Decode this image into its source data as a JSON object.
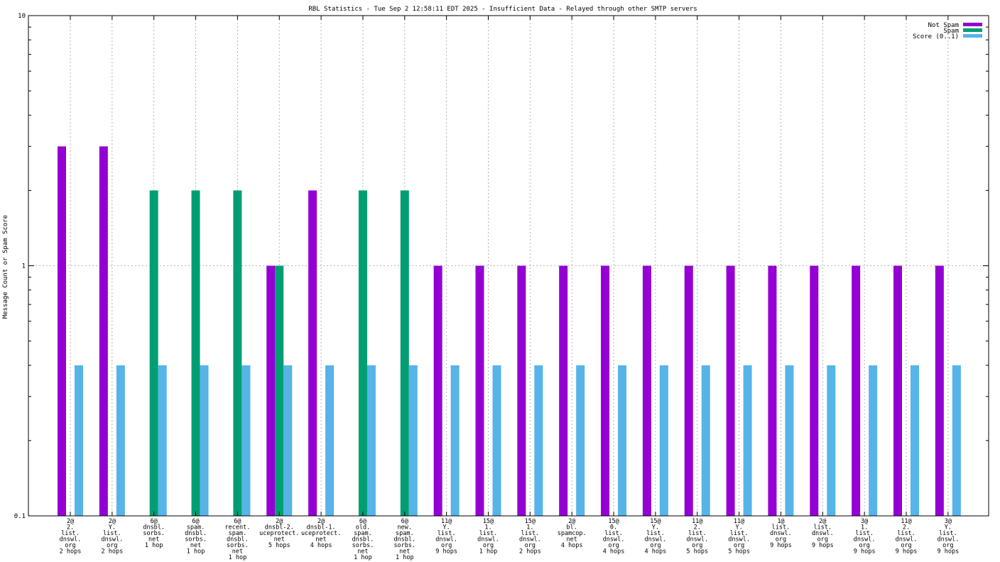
{
  "chart_data": {
    "type": "bar",
    "title": "RBL Statistics - Tue Sep  2 12:58:11 EDT 2025 - Insufficient Data - Relayed through other SMTP servers",
    "xlabel": "",
    "ylabel": "Message Count or Spam Score",
    "yscale": "log",
    "ylim": [
      0.1,
      10
    ],
    "yticks": [
      {
        "value": 10,
        "label": "10"
      },
      {
        "value": 1,
        "label": "1"
      },
      {
        "value": 0.1,
        "label": "0.1"
      }
    ],
    "grid": true,
    "legend_position": "top-right",
    "categories": [
      [
        "2@",
        "2.",
        "list.",
        "dnswl.",
        "org",
        "2 hops"
      ],
      [
        "2@",
        "Y.",
        "list.",
        "dnswl.",
        "org",
        "2 hops"
      ],
      [
        "6@",
        "dnsbl.",
        "sorbs.",
        "net",
        "1 hop"
      ],
      [
        "6@",
        "spam.",
        "dnsbl.",
        "sorbs.",
        "net",
        "1 hop"
      ],
      [
        "6@",
        "recent.",
        "spam.",
        "dnsbl.",
        "sorbs.",
        "net",
        "1 hop"
      ],
      [
        "2@",
        "dnsbl-2.",
        "uceprotect.",
        "net",
        "5 hops"
      ],
      [
        "2@",
        "dnsbl-1.",
        "uceprotect.",
        "net",
        "4 hops"
      ],
      [
        "6@",
        "old.",
        "spam.",
        "dnsbl.",
        "sorbs.",
        "net",
        "1 hop"
      ],
      [
        "6@",
        "new.",
        "spam.",
        "dnsbl.",
        "sorbs.",
        "net",
        "1 hop"
      ],
      [
        "11@",
        "Y.",
        "list.",
        "dnswl.",
        "org",
        "9 hops"
      ],
      [
        "15@",
        "1.",
        "list.",
        "dnswl.",
        "org",
        "1 hop"
      ],
      [
        "15@",
        "1.",
        "list.",
        "dnswl.",
        "org",
        "2 hops"
      ],
      [
        "2@",
        "bl.",
        "spamcop.",
        "net",
        "4 hops"
      ],
      [
        "15@",
        "0.",
        "list.",
        "dnswl.",
        "org",
        "4 hops"
      ],
      [
        "15@",
        "Y.",
        "list.",
        "dnswl.",
        "org",
        "4 hops"
      ],
      [
        "11@",
        "2.",
        "list.",
        "dnswl.",
        "org",
        "5 hops"
      ],
      [
        "11@",
        "Y.",
        "list.",
        "dnswl.",
        "org",
        "5 hops"
      ],
      [
        "1@",
        "list.",
        "dnswl.",
        "org",
        "9 hops"
      ],
      [
        "2@",
        "list.",
        "dnswl.",
        "org",
        "9 hops"
      ],
      [
        "3@",
        "1.",
        "list.",
        "dnswl.",
        "org",
        "9 hops"
      ],
      [
        "11@",
        "2.",
        "list.",
        "dnswl.",
        "org",
        "9 hops"
      ],
      [
        "3@",
        "Y.",
        "list.",
        "dnswl.",
        "org",
        "9 hops"
      ]
    ],
    "series": [
      {
        "name": "Not Spam",
        "color": "#9400d3",
        "values": [
          3,
          3,
          null,
          null,
          null,
          1,
          2,
          null,
          null,
          1,
          1,
          1,
          1,
          1,
          1,
          1,
          1,
          1,
          1,
          1,
          1,
          1
        ]
      },
      {
        "name": "Spam",
        "color": "#009e73",
        "values": [
          null,
          null,
          2,
          2,
          2,
          1,
          null,
          2,
          2,
          null,
          null,
          null,
          null,
          null,
          null,
          null,
          null,
          null,
          null,
          null,
          null,
          null
        ]
      },
      {
        "name": "Score (0..1)",
        "color": "#56b4e9",
        "values": [
          0.4,
          0.4,
          0.4,
          0.4,
          0.4,
          0.4,
          0.4,
          0.4,
          0.4,
          0.4,
          0.4,
          0.4,
          0.4,
          0.4,
          0.4,
          0.4,
          0.4,
          0.4,
          0.4,
          0.4,
          0.4,
          0.4
        ]
      }
    ]
  }
}
